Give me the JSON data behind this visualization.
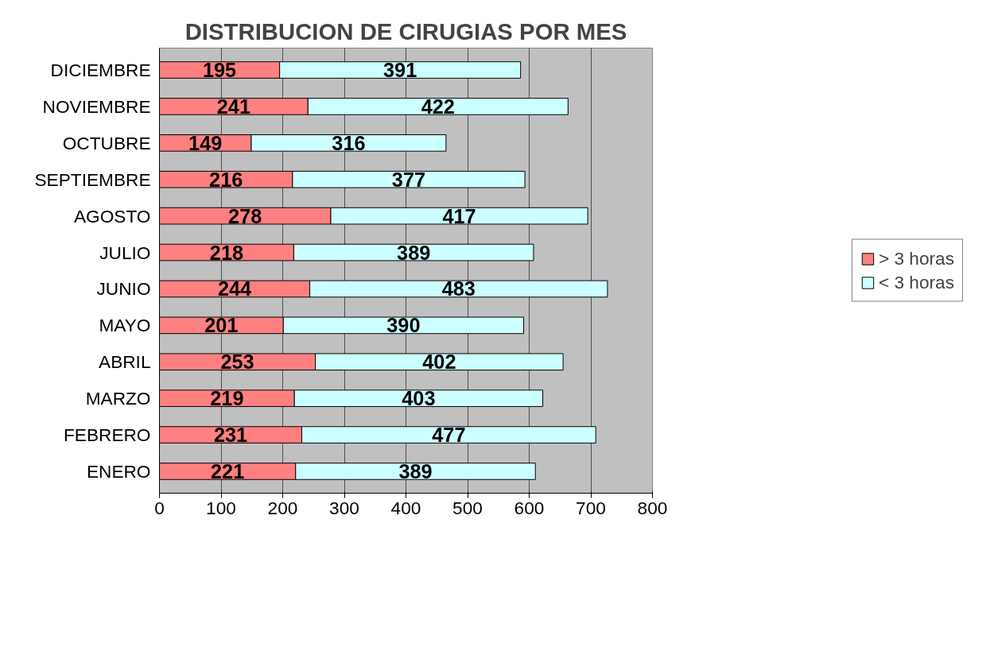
{
  "chart_data": {
    "type": "bar",
    "orientation": "horizontal",
    "stacked": true,
    "title": "DISTRIBUCION DE CIRUGIAS POR MES",
    "categories": [
      "DICIEMBRE",
      "NOVIEMBRE",
      "OCTUBRE",
      "SEPTIEMBRE",
      "AGOSTO",
      "JULIO",
      "JUNIO",
      "MAYO",
      "ABRIL",
      "MARZO",
      "FEBRERO",
      "ENERO"
    ],
    "series": [
      {
        "name": "> 3 horas",
        "color": "#ff8080",
        "values": [
          195,
          241,
          149,
          216,
          278,
          218,
          244,
          201,
          253,
          219,
          231,
          221
        ]
      },
      {
        "name": "< 3 horas",
        "color": "#ccffff",
        "values": [
          391,
          422,
          316,
          377,
          417,
          389,
          483,
          390,
          402,
          403,
          477,
          389
        ]
      }
    ],
    "xlim": [
      0,
      800
    ],
    "xticks": [
      0,
      100,
      200,
      300,
      400,
      500,
      600,
      700,
      800
    ],
    "grid": "x",
    "legend": "right",
    "data_labels": true
  }
}
